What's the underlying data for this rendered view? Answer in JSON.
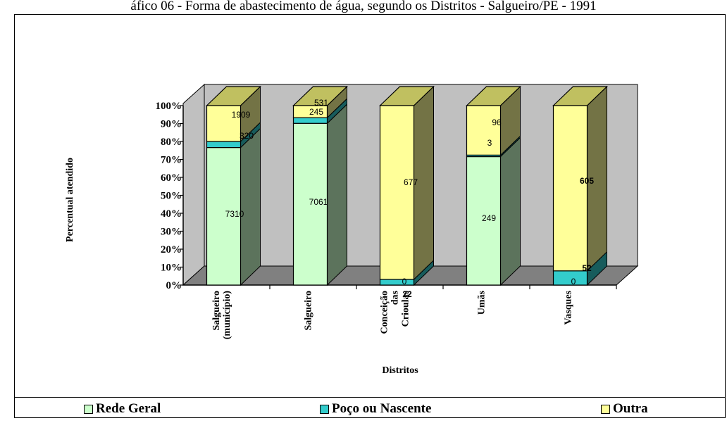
{
  "title": "áfico 06 - Forma de abastecimento de água, segundo os Distritos - Salgueiro/PE - 1991",
  "chart_data": {
    "type": "bar",
    "stacked": "percent",
    "three_d": true,
    "xlabel": "Distritos",
    "ylabel": "Percentual atendido",
    "ylim": [
      0,
      100
    ],
    "yticks": [
      "0%",
      "10%",
      "20%",
      "30%",
      "40%",
      "50%",
      "60%",
      "70%",
      "80%",
      "90%",
      "100%"
    ],
    "categories": [
      [
        "Salgueiro",
        "(município)"
      ],
      [
        "Salgueiro"
      ],
      [
        "Conceição",
        "das",
        "Crioulas"
      ],
      [
        "Umãs"
      ],
      [
        "Vasques"
      ]
    ],
    "series": [
      {
        "name": "Rede Geral",
        "color": "#ccffcc",
        "values": [
          7310,
          7061,
          0,
          249,
          0
        ]
      },
      {
        "name": "Poço ou Nascente",
        "color": "#33cccc",
        "values": [
          320,
          245,
          22,
          3,
          52
        ]
      },
      {
        "name": "Outra",
        "color": "#ffff99",
        "values": [
          1909,
          531,
          677,
          96,
          605
        ]
      }
    ],
    "value_labels": [
      [
        "7310",
        "7061",
        "0",
        "249",
        "0"
      ],
      [
        "320",
        "245",
        "22",
        "3",
        "52"
      ],
      [
        "1909",
        "531",
        "677",
        "96",
        "605"
      ]
    ],
    "grid": false,
    "legend_position": "bottom"
  },
  "colors": {
    "wall": "#c0c0c0",
    "floor": "#808080",
    "top_face": "#c0c060"
  }
}
